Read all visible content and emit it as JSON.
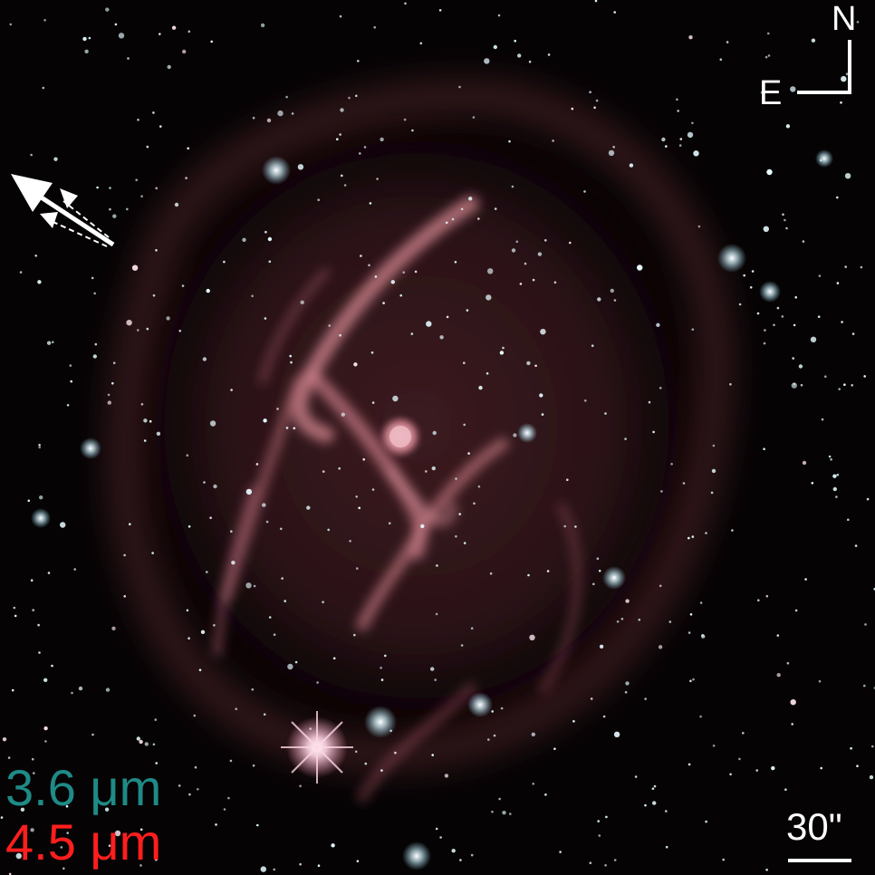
{
  "compass": {
    "north_label": "N",
    "east_label": "E"
  },
  "scale_bar": {
    "label": "30\""
  },
  "legend": [
    {
      "label": "3.6 μm",
      "color": "#1f8a86"
    },
    {
      "label": "4.5 μm",
      "color": "#ff1e1e"
    }
  ],
  "colors": {
    "background": "#050304",
    "nebula": "#b85c68",
    "nebula_filament": "#d98a96",
    "star": "#e6fbff",
    "annotation": "#ffffff"
  },
  "icons": {
    "motion_arrow": "arrow-up-left-icon",
    "compass": "compass-icon"
  }
}
